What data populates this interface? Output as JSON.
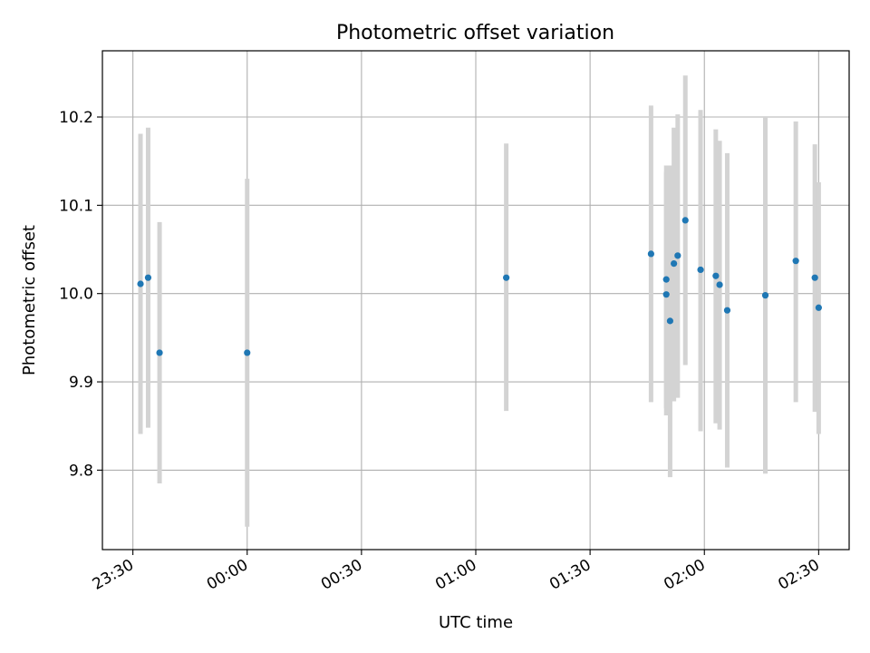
{
  "chart_data": {
    "type": "scatter",
    "title": "Photometric offset variation",
    "xlabel": "UTC time",
    "ylabel": "Photometric offset",
    "x_axis": "time",
    "xlim": [
      "23:22",
      "02:38"
    ],
    "ylim": [
      9.71,
      10.275
    ],
    "grid": true,
    "legend": "none",
    "colors": {
      "point": "#1f77b4",
      "errorbar": "#d3d3d3",
      "grid": "#b0b0b0",
      "axes": "#000000"
    },
    "x_ticks": [
      {
        "label": "23:30",
        "time": "23:30"
      },
      {
        "label": "00:00",
        "time": "00:00"
      },
      {
        "label": "00:30",
        "time": "00:30"
      },
      {
        "label": "01:00",
        "time": "01:00"
      },
      {
        "label": "01:30",
        "time": "01:30"
      },
      {
        "label": "02:00",
        "time": "02:00"
      },
      {
        "label": "02:30",
        "time": "02:30"
      }
    ],
    "y_ticks": [
      {
        "label": "9.8",
        "value": 9.8
      },
      {
        "label": "9.9",
        "value": 9.9
      },
      {
        "label": "10.0",
        "value": 10.0
      },
      {
        "label": "10.1",
        "value": 10.1
      },
      {
        "label": "10.2",
        "value": 10.2
      }
    ],
    "points": [
      {
        "time": "23:32",
        "value": 10.011,
        "lower": 9.841,
        "upper": 10.181
      },
      {
        "time": "23:34",
        "value": 10.018,
        "lower": 9.848,
        "upper": 10.188
      },
      {
        "time": "23:37",
        "value": 9.933,
        "lower": 9.785,
        "upper": 10.081
      },
      {
        "time": "00:00",
        "value": 9.933,
        "lower": 9.736,
        "upper": 10.13
      },
      {
        "time": "01:08",
        "value": 10.018,
        "lower": 9.867,
        "upper": 10.17
      },
      {
        "time": "01:46",
        "value": 10.045,
        "lower": 9.877,
        "upper": 10.213
      },
      {
        "time": "01:50",
        "value": 10.016,
        "lower": 9.862,
        "upper": 10.145
      },
      {
        "time": "01:50",
        "value": 9.999,
        "lower": 9.87,
        "upper": 10.138
      },
      {
        "time": "01:51",
        "value": 9.969,
        "lower": 9.792,
        "upper": 10.145
      },
      {
        "time": "01:52",
        "value": 10.034,
        "lower": 9.878,
        "upper": 10.188
      },
      {
        "time": "01:53",
        "value": 10.043,
        "lower": 9.882,
        "upper": 10.203
      },
      {
        "time": "01:55",
        "value": 10.083,
        "lower": 9.919,
        "upper": 10.247
      },
      {
        "time": "01:59",
        "value": 10.027,
        "lower": 9.844,
        "upper": 10.208
      },
      {
        "time": "02:03",
        "value": 10.02,
        "lower": 9.853,
        "upper": 10.186
      },
      {
        "time": "02:04",
        "value": 10.01,
        "lower": 9.846,
        "upper": 10.173
      },
      {
        "time": "02:06",
        "value": 9.981,
        "lower": 9.803,
        "upper": 10.159
      },
      {
        "time": "02:16",
        "value": 9.998,
        "lower": 9.796,
        "upper": 10.2
      },
      {
        "time": "02:24",
        "value": 10.037,
        "lower": 9.877,
        "upper": 10.195
      },
      {
        "time": "02:29",
        "value": 10.018,
        "lower": 9.866,
        "upper": 10.169
      },
      {
        "time": "02:30",
        "value": 9.984,
        "lower": 9.841,
        "upper": 10.126
      }
    ]
  }
}
